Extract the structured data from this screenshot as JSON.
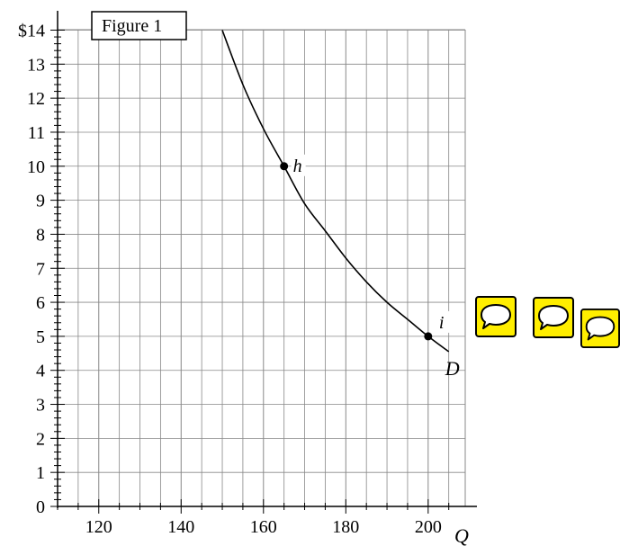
{
  "chart_data": {
    "type": "line",
    "title": "Figure 1",
    "xlabel": "Q",
    "ylabel": "",
    "xlim": [
      110,
      209
    ],
    "ylim": [
      0,
      14
    ],
    "xticks": [
      120,
      140,
      160,
      180,
      200
    ],
    "x_minor_step": 5,
    "yticks": [
      0,
      1,
      2,
      3,
      4,
      5,
      6,
      7,
      8,
      9,
      10,
      11,
      12,
      13,
      14
    ],
    "ytick_labels": [
      "0",
      "1",
      "2",
      "3",
      "4",
      "5",
      "6",
      "7",
      "8",
      "9",
      "10",
      "11",
      "12",
      "13",
      "$14"
    ],
    "grid": true,
    "curve": {
      "name": "D",
      "x": [
        150,
        155,
        160,
        165,
        170,
        175,
        180,
        185,
        190,
        195,
        200,
        205
      ],
      "y": [
        14.0,
        12.4,
        11.1,
        10.0,
        8.9,
        8.1,
        7.3,
        6.6,
        6.0,
        5.5,
        5.0,
        4.55
      ]
    },
    "points": [
      {
        "label": "h",
        "x": 165,
        "y": 10
      },
      {
        "label": "i",
        "x": 200,
        "y": 5
      }
    ]
  },
  "colors": {
    "grid": "#888888",
    "axis": "#000000",
    "curve": "#000000",
    "icon_fill": "#ffee00",
    "icon_border": "#000000"
  },
  "icons": [
    {
      "name": "comment-icon"
    },
    {
      "name": "comment-icon"
    },
    {
      "name": "comment-icon"
    }
  ]
}
